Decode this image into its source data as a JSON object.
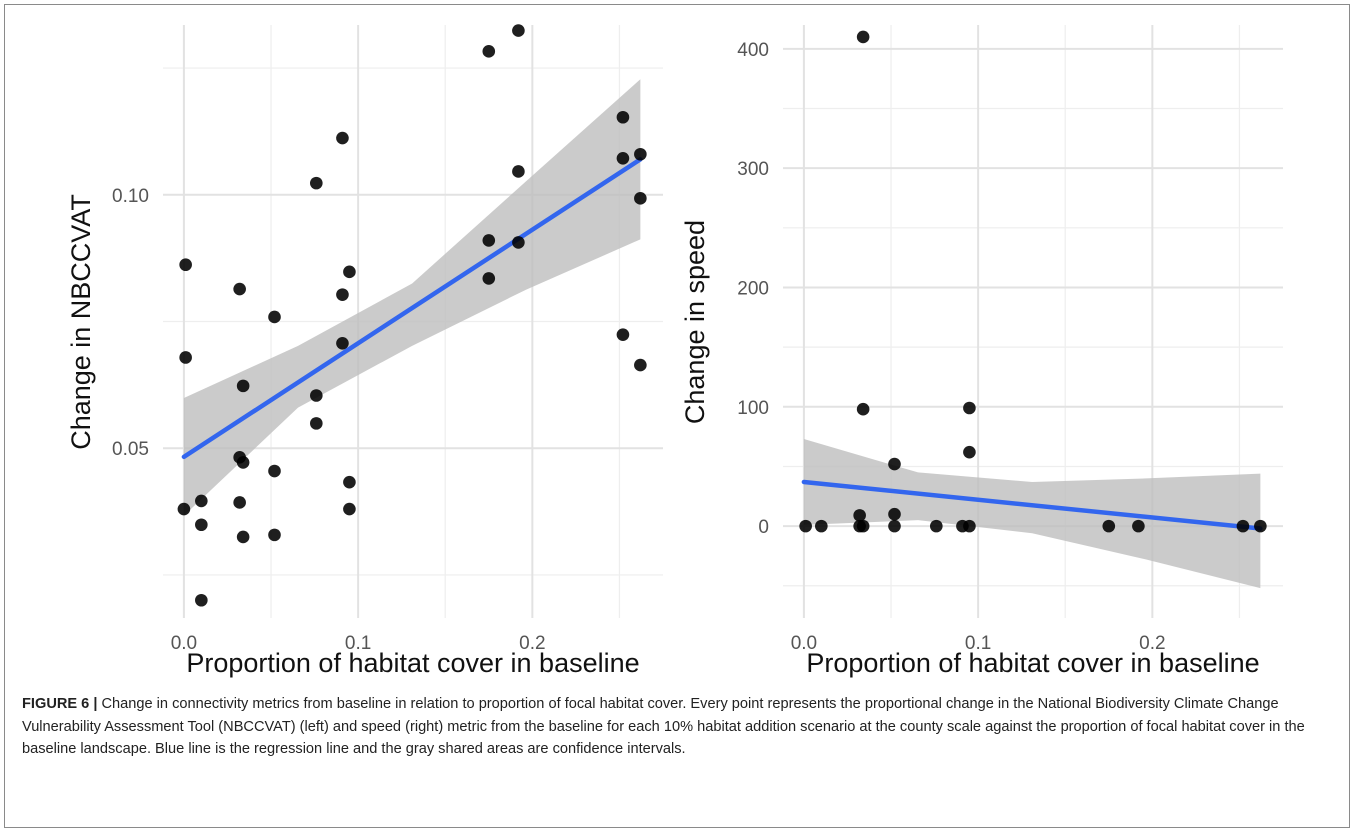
{
  "chart_data": [
    {
      "type": "scatter",
      "xlabel": "Proportion of habitat cover in baseline",
      "ylabel": "Change in NBCCVAT",
      "xlim": [
        -0.012,
        0.275
      ],
      "ylim": [
        0.0165,
        0.1335
      ],
      "x_ticks": [
        0.0,
        0.1,
        0.2
      ],
      "x_tick_labels": [
        "0.0",
        "0.1",
        "0.2"
      ],
      "y_ticks": [
        0.05,
        0.1
      ],
      "y_tick_labels": [
        "0.05",
        "0.10"
      ],
      "grid": true,
      "point_color": "#000000",
      "points": [
        {
          "x": 0.001,
          "y": 0.0862
        },
        {
          "x": 0.001,
          "y": 0.0679
        },
        {
          "x": 0.0,
          "y": 0.038
        },
        {
          "x": 0.01,
          "y": 0.0396
        },
        {
          "x": 0.01,
          "y": 0.0349
        },
        {
          "x": 0.01,
          "y": 0.02
        },
        {
          "x": 0.032,
          "y": 0.0814
        },
        {
          "x": 0.034,
          "y": 0.0623
        },
        {
          "x": 0.032,
          "y": 0.0482
        },
        {
          "x": 0.034,
          "y": 0.0472
        },
        {
          "x": 0.032,
          "y": 0.0393
        },
        {
          "x": 0.034,
          "y": 0.0325
        },
        {
          "x": 0.052,
          "y": 0.0759
        },
        {
          "x": 0.052,
          "y": 0.0455
        },
        {
          "x": 0.052,
          "y": 0.0329
        },
        {
          "x": 0.076,
          "y": 0.1023
        },
        {
          "x": 0.076,
          "y": 0.0604
        },
        {
          "x": 0.076,
          "y": 0.0549
        },
        {
          "x": 0.091,
          "y": 0.1112
        },
        {
          "x": 0.091,
          "y": 0.0803
        },
        {
          "x": 0.091,
          "y": 0.0707
        },
        {
          "x": 0.095,
          "y": 0.0848
        },
        {
          "x": 0.095,
          "y": 0.0433
        },
        {
          "x": 0.095,
          "y": 0.038
        },
        {
          "x": 0.175,
          "y": 0.1283
        },
        {
          "x": 0.175,
          "y": 0.091
        },
        {
          "x": 0.175,
          "y": 0.0835
        },
        {
          "x": 0.192,
          "y": 0.1324
        },
        {
          "x": 0.192,
          "y": 0.1046
        },
        {
          "x": 0.192,
          "y": 0.0906
        },
        {
          "x": 0.252,
          "y": 0.1153
        },
        {
          "x": 0.252,
          "y": 0.1072
        },
        {
          "x": 0.252,
          "y": 0.0724
        },
        {
          "x": 0.262,
          "y": 0.108
        },
        {
          "x": 0.262,
          "y": 0.0993
        },
        {
          "x": 0.262,
          "y": 0.0664
        }
      ],
      "regression": {
        "x": [
          0.0,
          0.262
        ],
        "y": [
          0.0483,
          0.107
        ],
        "color": "#3366ee"
      },
      "confidence_band": {
        "x": [
          0.0,
          0.0655,
          0.131,
          0.1965,
          0.262
        ],
        "lower": [
          0.0367,
          0.058,
          0.0702,
          0.0813,
          0.0912
        ],
        "upper": [
          0.0599,
          0.0702,
          0.0825,
          0.1027,
          0.1228
        ],
        "color": "#bebebe"
      }
    },
    {
      "type": "scatter",
      "xlabel": "Proportion of habitat cover in baseline",
      "ylabel": "Change in speed",
      "xlim": [
        -0.012,
        0.275
      ],
      "ylim": [
        -77,
        420
      ],
      "x_ticks": [
        0.0,
        0.1,
        0.2
      ],
      "x_tick_labels": [
        "0.0",
        "0.1",
        "0.2"
      ],
      "y_ticks": [
        0,
        100,
        200,
        300,
        400
      ],
      "y_tick_labels": [
        "0",
        "100",
        "200",
        "300",
        "400"
      ],
      "grid": true,
      "point_color": "#000000",
      "points": [
        {
          "x": 0.001,
          "y": 0
        },
        {
          "x": 0.01,
          "y": 0
        },
        {
          "x": 0.032,
          "y": 0
        },
        {
          "x": 0.034,
          "y": 0
        },
        {
          "x": 0.032,
          "y": 9
        },
        {
          "x": 0.034,
          "y": 410
        },
        {
          "x": 0.034,
          "y": 98
        },
        {
          "x": 0.052,
          "y": 0
        },
        {
          "x": 0.052,
          "y": 10
        },
        {
          "x": 0.052,
          "y": 52
        },
        {
          "x": 0.076,
          "y": 0
        },
        {
          "x": 0.091,
          "y": 0
        },
        {
          "x": 0.095,
          "y": 0
        },
        {
          "x": 0.095,
          "y": 99
        },
        {
          "x": 0.095,
          "y": 62
        },
        {
          "x": 0.175,
          "y": 0
        },
        {
          "x": 0.192,
          "y": 0
        },
        {
          "x": 0.252,
          "y": 0
        },
        {
          "x": 0.262,
          "y": 0
        }
      ],
      "regression": {
        "x": [
          0.0,
          0.262
        ],
        "y": [
          37,
          -2
        ],
        "color": "#3366ee"
      },
      "confidence_band": {
        "x": [
          0.0,
          0.0655,
          0.131,
          0.1965,
          0.262
        ],
        "lower": [
          1,
          5,
          -6,
          -28,
          -52
        ],
        "upper": [
          73,
          45,
          37,
          40,
          44
        ],
        "color": "#bebebe"
      }
    }
  ],
  "caption": {
    "label": "FIGURE 6 |",
    "text": " Change in connectivity metrics from baseline in relation to proportion of focal habitat cover. Every point represents the proportional change in the National Biodiversity Climate Change Vulnerability Assessment Tool (NBCCVAT) (left) and speed (right) metric from the baseline for each 10% habitat addition scenario at the county scale against the proportion of focal habitat cover in the baseline landscape. Blue line is the regression line and the gray shared areas are confidence intervals."
  }
}
